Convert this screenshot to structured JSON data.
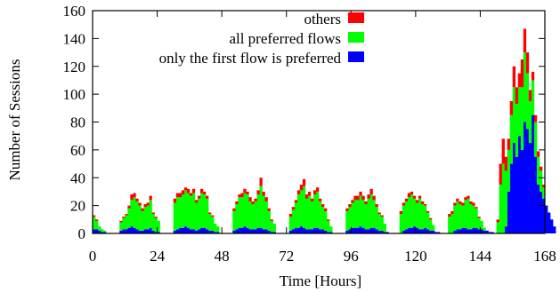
{
  "chart_data": {
    "type": "bar",
    "stacked": true,
    "xlabel": "Time [Hours]",
    "ylabel": "Number of Sessions",
    "xlim": [
      0,
      168
    ],
    "ylim": [
      0,
      160
    ],
    "x_ticks": [
      0,
      24,
      48,
      72,
      96,
      120,
      144,
      168
    ],
    "y_ticks": [
      0,
      20,
      40,
      60,
      80,
      100,
      120,
      140,
      160
    ],
    "legend_position": "top-right",
    "grid": false,
    "series": [
      {
        "name": "only the first flow is preferred",
        "color": "#0000ff",
        "values": [
          3,
          3,
          2,
          1,
          1,
          0,
          0,
          0,
          0,
          0,
          2,
          3,
          3,
          4,
          5,
          4,
          3,
          2,
          2,
          3,
          3,
          4,
          2,
          1,
          1,
          0,
          0,
          0,
          0,
          0,
          2,
          3,
          4,
          4,
          5,
          4,
          3,
          3,
          2,
          3,
          4,
          4,
          3,
          2,
          2,
          1,
          1,
          0,
          0,
          0,
          0,
          0,
          2,
          3,
          4,
          4,
          5,
          4,
          3,
          3,
          3,
          4,
          4,
          3,
          3,
          2,
          1,
          1,
          0,
          0,
          0,
          0,
          0,
          2,
          3,
          4,
          4,
          5,
          4,
          3,
          3,
          3,
          4,
          4,
          3,
          3,
          2,
          1,
          1,
          0,
          0,
          0,
          0,
          0,
          2,
          3,
          4,
          4,
          4,
          5,
          4,
          3,
          3,
          4,
          4,
          3,
          2,
          2,
          1,
          1,
          0,
          0,
          0,
          0,
          0,
          2,
          3,
          4,
          4,
          5,
          4,
          3,
          3,
          4,
          3,
          2,
          2,
          1,
          1,
          0,
          0,
          0,
          0,
          0,
          2,
          3,
          3,
          4,
          4,
          3,
          3,
          4,
          4,
          3,
          3,
          2,
          2,
          1,
          1,
          0,
          0,
          0,
          0,
          5,
          30,
          50,
          65,
          55,
          70,
          60,
          80,
          75,
          65,
          85,
          55,
          35,
          30,
          25,
          20,
          15,
          10,
          5
        ]
      },
      {
        "name": "all preferred flows",
        "color": "#00ff00",
        "values": [
          9,
          6,
          3,
          2,
          1,
          0,
          0,
          0,
          0,
          0,
          6,
          8,
          10,
          14,
          19,
          22,
          20,
          18,
          14,
          16,
          17,
          20,
          12,
          10,
          8,
          0,
          0,
          0,
          0,
          0,
          20,
          23,
          22,
          24,
          26,
          25,
          24,
          26,
          20,
          22,
          25,
          24,
          22,
          12,
          10,
          6,
          4,
          0,
          0,
          0,
          0,
          0,
          14,
          18,
          22,
          22,
          24,
          24,
          20,
          18,
          20,
          24,
          30,
          24,
          20,
          14,
          8,
          6,
          0,
          0,
          0,
          0,
          0,
          10,
          14,
          18,
          24,
          26,
          30,
          22,
          24,
          20,
          24,
          26,
          20,
          16,
          14,
          8,
          4,
          0,
          0,
          0,
          0,
          0,
          14,
          16,
          18,
          20,
          20,
          22,
          20,
          18,
          22,
          24,
          20,
          16,
          12,
          10,
          6,
          0,
          0,
          0,
          0,
          0,
          14,
          18,
          20,
          22,
          24,
          20,
          18,
          22,
          18,
          16,
          12,
          8,
          4,
          0,
          0,
          0,
          0,
          0,
          12,
          14,
          18,
          20,
          18,
          16,
          20,
          22,
          18,
          16,
          14,
          8,
          6,
          2,
          0,
          0,
          0,
          0,
          8,
          35,
          50,
          40,
          30,
          35,
          40,
          38,
          35,
          45,
          50,
          40,
          30,
          25,
          25,
          20,
          15,
          8
        ]
      },
      {
        "name": "others",
        "color": "#ff0000",
        "values": [
          1,
          1,
          0,
          0,
          0,
          0,
          0,
          0,
          0,
          0,
          1,
          1,
          1,
          2,
          4,
          3,
          2,
          2,
          2,
          2,
          2,
          3,
          1,
          1,
          0,
          0,
          0,
          0,
          0,
          0,
          3,
          3,
          3,
          3,
          2,
          3,
          2,
          3,
          2,
          2,
          3,
          2,
          2,
          1,
          1,
          0,
          0,
          0,
          0,
          0,
          0,
          0,
          2,
          2,
          2,
          3,
          3,
          2,
          3,
          2,
          2,
          3,
          6,
          3,
          3,
          2,
          1,
          0,
          0,
          0,
          0,
          0,
          0,
          2,
          2,
          2,
          3,
          4,
          5,
          3,
          3,
          2,
          3,
          3,
          2,
          2,
          2,
          1,
          0,
          0,
          0,
          0,
          0,
          0,
          2,
          2,
          2,
          3,
          3,
          3,
          3,
          2,
          3,
          4,
          3,
          2,
          1,
          1,
          0,
          0,
          0,
          0,
          0,
          0,
          2,
          2,
          2,
          3,
          2,
          2,
          2,
          2,
          2,
          1,
          1,
          1,
          0,
          0,
          0,
          0,
          0,
          0,
          2,
          2,
          2,
          2,
          2,
          2,
          2,
          2,
          2,
          2,
          1,
          1,
          0,
          0,
          0,
          0,
          0,
          0,
          2,
          15,
          18,
          10,
          8,
          10,
          15,
          12,
          10,
          20,
          17,
          15,
          8,
          6,
          5,
          4,
          3,
          2
        ]
      }
    ]
  }
}
